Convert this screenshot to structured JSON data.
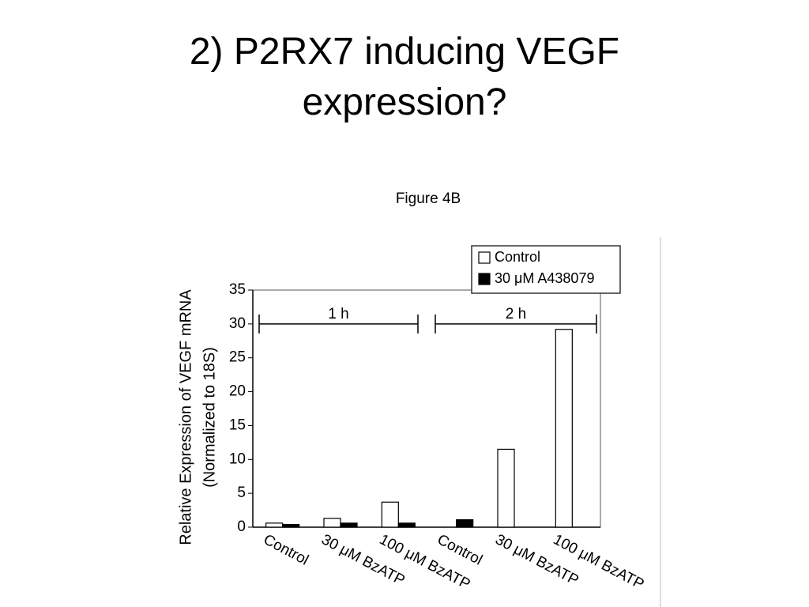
{
  "title": "2) P2RX7 inducing VEGF expression?",
  "subtitle": "Figure 4B",
  "chart_data": {
    "type": "bar",
    "y_label": [
      "Relative Expression of VEGF mRNA",
      "(Normalized to 18S)"
    ],
    "annotations": [
      "1 h",
      "2 h"
    ],
    "categories": [
      "Control",
      "30 μM BzATP",
      "100 μM BzATP",
      "Control",
      "30 μM BzATP",
      "100 μM BzATP"
    ],
    "series": [
      {
        "name": "Control",
        "color": "#ffffff",
        "values": [
          0.6,
          1.3,
          3.7,
          null,
          11.5,
          29.2
        ]
      },
      {
        "name": "30 μM A438079",
        "color": "#000000",
        "values": [
          0.4,
          0.6,
          0.6,
          1.1,
          null,
          null
        ]
      }
    ],
    "ylim": [
      0,
      35
    ],
    "yticks": [
      0,
      5,
      10,
      15,
      20,
      25,
      30,
      35
    ],
    "legend": "top-right"
  }
}
